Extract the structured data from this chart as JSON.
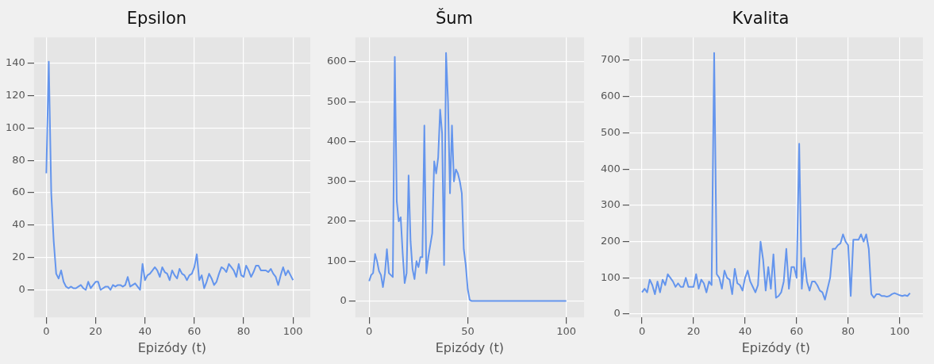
{
  "chart_data": [
    {
      "type": "line",
      "title": "Epsilon",
      "xlabel": "Epizódy (t)",
      "xlim": [
        -5,
        107
      ],
      "ylim": [
        -17,
        156
      ],
      "xticks": [
        0,
        20,
        40,
        60,
        80,
        100
      ],
      "yticks": [
        0,
        20,
        40,
        60,
        80,
        100,
        120,
        140
      ],
      "grid": true,
      "x": [
        0,
        1,
        2,
        3,
        4,
        5,
        6,
        7,
        8,
        9,
        10,
        11,
        12,
        13,
        14,
        15,
        16,
        17,
        18,
        19,
        20,
        21,
        22,
        23,
        24,
        25,
        26,
        27,
        28,
        29,
        30,
        31,
        32,
        33,
        34,
        35,
        36,
        37,
        38,
        39,
        40,
        41,
        42,
        43,
        44,
        45,
        46,
        47,
        48,
        49,
        50,
        51,
        52,
        53,
        54,
        55,
        56,
        57,
        58,
        59,
        60,
        61,
        62,
        63,
        64,
        65,
        66,
        67,
        68,
        69,
        70,
        71,
        72,
        73,
        74,
        75,
        76,
        77,
        78,
        79,
        80,
        81,
        82,
        83,
        84,
        85,
        86,
        87,
        88,
        89,
        90,
        91,
        92,
        93,
        94,
        95,
        96,
        97,
        98,
        99,
        100
      ],
      "series": [
        {
          "color": "#6495ed",
          "values": [
            72,
            141,
            60,
            30,
            10,
            7,
            12,
            5,
            2,
            1,
            2,
            1,
            1,
            2,
            3,
            1,
            0,
            5,
            1,
            3,
            5,
            5,
            0,
            1,
            2,
            2,
            0,
            3,
            2,
            3,
            3,
            2,
            3,
            8,
            2,
            3,
            4,
            2,
            0,
            16,
            6,
            9,
            10,
            12,
            14,
            12,
            8,
            14,
            11,
            10,
            6,
            12,
            9,
            7,
            13,
            10,
            9,
            6,
            9,
            10,
            14,
            22,
            6,
            9,
            1,
            5,
            10,
            7,
            3,
            5,
            10,
            14,
            13,
            11,
            16,
            14,
            12,
            8,
            16,
            9,
            8,
            15,
            12,
            8,
            11,
            15,
            15,
            12,
            12,
            12,
            11,
            13,
            10,
            8,
            3,
            9,
            14,
            9,
            12,
            9,
            6
          ]
        }
      ]
    },
    {
      "type": "line",
      "title": "Šum",
      "xlabel": "Epizódy (t)",
      "xlim": [
        -7,
        109
      ],
      "ylim": [
        -41,
        661
      ],
      "xticks": [
        0,
        50,
        100
      ],
      "yticks": [
        0,
        100,
        200,
        300,
        400,
        500,
        600
      ],
      "grid": true,
      "x": [
        0,
        1,
        2,
        3,
        4,
        5,
        6,
        7,
        8,
        9,
        10,
        11,
        12,
        13,
        14,
        15,
        16,
        17,
        18,
        19,
        20,
        21,
        22,
        23,
        24,
        25,
        26,
        27,
        28,
        29,
        30,
        31,
        32,
        33,
        34,
        35,
        36,
        37,
        38,
        39,
        40,
        41,
        42,
        43,
        44,
        45,
        46,
        47,
        48,
        49,
        50,
        51,
        52,
        53,
        54,
        55,
        56,
        57,
        58,
        59,
        60,
        61,
        62,
        63,
        64,
        65,
        66,
        67,
        68,
        69,
        70,
        71,
        72,
        73,
        74,
        75,
        76,
        77,
        78,
        79,
        80,
        81,
        82,
        83,
        84,
        85,
        86,
        87,
        88,
        89,
        90,
        91,
        92,
        93,
        94,
        95,
        96,
        97,
        98,
        99,
        100
      ],
      "series": [
        {
          "color": "#6495ed",
          "values": [
            50,
            65,
            70,
            118,
            100,
            75,
            65,
            35,
            70,
            130,
            70,
            65,
            60,
            612,
            250,
            200,
            210,
            120,
            45,
            70,
            315,
            150,
            80,
            55,
            100,
            85,
            110,
            110,
            440,
            70,
            110,
            140,
            170,
            350,
            320,
            360,
            480,
            420,
            90,
            622,
            500,
            270,
            440,
            300,
            330,
            320,
            300,
            270,
            130,
            90,
            30,
            3,
            0,
            0,
            0,
            0,
            0,
            0,
            0,
            0,
            0,
            0,
            0,
            0,
            0,
            0,
            0,
            0,
            0,
            0,
            0,
            0,
            0,
            0,
            0,
            0,
            0,
            0,
            0,
            0,
            0,
            0,
            0,
            0,
            0,
            0,
            0,
            0,
            0,
            0,
            0,
            0,
            0,
            0,
            0,
            0,
            0,
            0,
            0,
            0,
            0
          ]
        }
      ]
    },
    {
      "type": "line",
      "title": "Kvalita",
      "xlabel": "Epizódy (t)",
      "xlim": [
        -5,
        109
      ],
      "ylim": [
        -9,
        763
      ],
      "xticks": [
        0,
        20,
        40,
        60,
        80,
        100
      ],
      "yticks": [
        0,
        100,
        200,
        300,
        400,
        500,
        600,
        700
      ],
      "grid": true,
      "x": [
        0,
        1,
        2,
        3,
        4,
        5,
        6,
        7,
        8,
        9,
        10,
        11,
        12,
        13,
        14,
        15,
        16,
        17,
        18,
        19,
        20,
        21,
        22,
        23,
        24,
        25,
        26,
        27,
        28,
        29,
        30,
        31,
        32,
        33,
        34,
        35,
        36,
        37,
        38,
        39,
        40,
        41,
        42,
        43,
        44,
        45,
        46,
        47,
        48,
        49,
        50,
        51,
        52,
        53,
        54,
        55,
        56,
        57,
        58,
        59,
        60,
        61,
        62,
        63,
        64,
        65,
        66,
        67,
        68,
        69,
        70,
        71,
        72,
        73,
        74,
        75,
        76,
        77,
        78,
        79,
        80,
        81,
        82,
        83,
        84,
        85,
        86,
        87,
        88,
        89,
        90,
        91,
        92,
        93,
        94,
        95,
        96,
        97,
        98,
        99,
        100,
        101,
        102,
        103,
        104
      ],
      "series": [
        {
          "color": "#6495ed",
          "values": [
            60,
            70,
            60,
            95,
            80,
            55,
            90,
            60,
            95,
            80,
            110,
            100,
            90,
            75,
            85,
            75,
            75,
            100,
            75,
            75,
            75,
            110,
            70,
            95,
            85,
            60,
            90,
            80,
            720,
            110,
            100,
            70,
            120,
            100,
            95,
            55,
            125,
            85,
            80,
            65,
            100,
            120,
            90,
            75,
            60,
            80,
            200,
            150,
            65,
            130,
            70,
            165,
            45,
            50,
            60,
            90,
            180,
            70,
            130,
            130,
            100,
            470,
            70,
            155,
            90,
            65,
            90,
            90,
            80,
            65,
            60,
            40,
            70,
            100,
            180,
            180,
            190,
            195,
            220,
            200,
            190,
            50,
            205,
            205,
            205,
            220,
            200,
            220,
            180,
            55,
            45,
            55,
            55,
            50,
            50,
            48,
            50,
            55,
            58,
            55,
            52,
            50,
            52,
            50,
            58
          ]
        }
      ]
    }
  ]
}
